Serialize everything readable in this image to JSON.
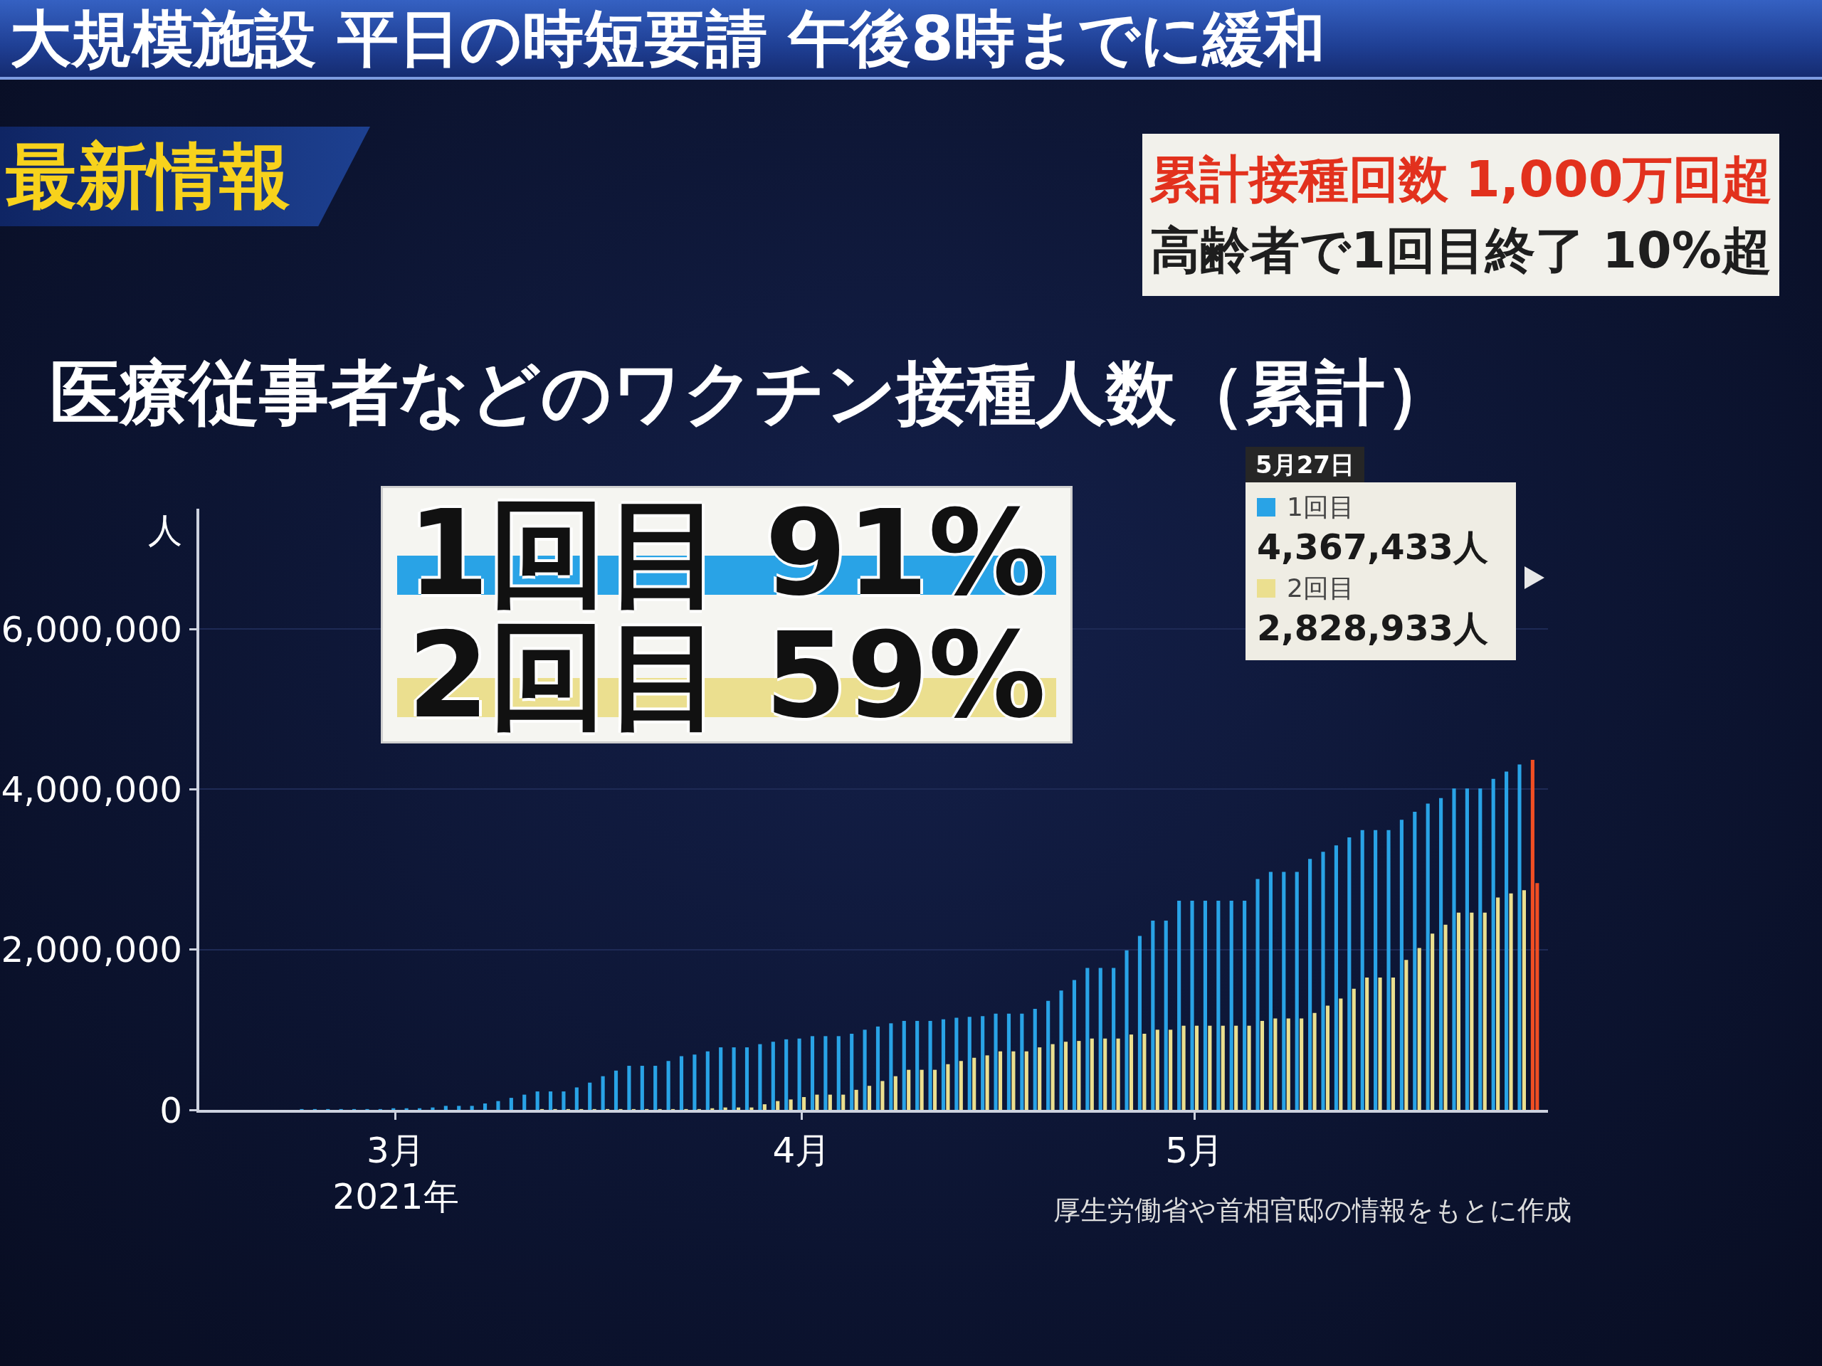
{
  "chart_data": {
    "type": "bar",
    "title": "医療従事者などのワクチン接種人数（累計）",
    "ylabel": "人",
    "legend_title": "5月27日",
    "annotations": [
      "大規模施設 平日の時短要請 午後8時までに緩和",
      "最新情報",
      "累計接種回数 1,000万回超",
      "高齢者で1回目終了 10%超",
      "1回目 91%",
      "2回目 59%",
      "4,367,433人",
      "2,828,933人",
      "厚生労働省や首相官邸の情報をもとに作成"
    ],
    "x": [
      "2021-02-22",
      "2021-02-23",
      "2021-02-24",
      "2021-02-25",
      "2021-02-26",
      "2021-02-27",
      "2021-02-28",
      "2021-03-01",
      "2021-03-02",
      "2021-03-03",
      "2021-03-04",
      "2021-03-05",
      "2021-03-06",
      "2021-03-07",
      "2021-03-08",
      "2021-03-09",
      "2021-03-10",
      "2021-03-11",
      "2021-03-12",
      "2021-03-13",
      "2021-03-14",
      "2021-03-15",
      "2021-03-16",
      "2021-03-17",
      "2021-03-18",
      "2021-03-19",
      "2021-03-20",
      "2021-03-21",
      "2021-03-22",
      "2021-03-23",
      "2021-03-24",
      "2021-03-25",
      "2021-03-26",
      "2021-03-27",
      "2021-03-28",
      "2021-03-29",
      "2021-03-30",
      "2021-03-31",
      "2021-04-01",
      "2021-04-02",
      "2021-04-03",
      "2021-04-04",
      "2021-04-05",
      "2021-04-06",
      "2021-04-07",
      "2021-04-08",
      "2021-04-09",
      "2021-04-10",
      "2021-04-11",
      "2021-04-12",
      "2021-04-13",
      "2021-04-14",
      "2021-04-15",
      "2021-04-16",
      "2021-04-17",
      "2021-04-18",
      "2021-04-19",
      "2021-04-20",
      "2021-04-21",
      "2021-04-22",
      "2021-04-23",
      "2021-04-24",
      "2021-04-25",
      "2021-04-26",
      "2021-04-27",
      "2021-04-28",
      "2021-04-29",
      "2021-04-30",
      "2021-05-01",
      "2021-05-02",
      "2021-05-03",
      "2021-05-04",
      "2021-05-05",
      "2021-05-06",
      "2021-05-07",
      "2021-05-08",
      "2021-05-09",
      "2021-05-10",
      "2021-05-11",
      "2021-05-12",
      "2021-05-13",
      "2021-05-14",
      "2021-05-15",
      "2021-05-16",
      "2021-05-17",
      "2021-05-18",
      "2021-05-19",
      "2021-05-20",
      "2021-05-21",
      "2021-05-22",
      "2021-05-23",
      "2021-05-24",
      "2021-05-25",
      "2021-05-26",
      "2021-05-27"
    ],
    "xlim": [
      "2021-02-14",
      "2021-05-28"
    ],
    "xticks": [
      {
        "value": "2021-03-01",
        "label": "3月\n2021年"
      },
      {
        "value": "2021-04-01",
        "label": "4月"
      },
      {
        "value": "2021-05-01",
        "label": "5月"
      }
    ],
    "ylim": [
      0,
      7500000
    ],
    "yticks": [
      0,
      {
        "value": 2000000,
        "label": "2,000,000"
      },
      {
        "value": 4000000,
        "label": "4,000,000"
      },
      {
        "value": 6000000,
        "label": "6,000,000"
      }
    ],
    "grid": "y",
    "legend": "top right",
    "series": [
      {
        "name": "1回目",
        "color": "#29a3e6",
        "values": [
          10000,
          10000,
          10000,
          10000,
          10000,
          10000,
          10000,
          20000,
          20000,
          20000,
          30000,
          50000,
          50000,
          50000,
          80000,
          110000,
          150000,
          190000,
          230000,
          230000,
          230000,
          280000,
          340000,
          420000,
          490000,
          550000,
          550000,
          550000,
          610000,
          670000,
          690000,
          730000,
          780000,
          780000,
          780000,
          820000,
          850000,
          880000,
          890000,
          920000,
          920000,
          920000,
          950000,
          1000000,
          1040000,
          1080000,
          1110000,
          1110000,
          1110000,
          1130000,
          1150000,
          1160000,
          1170000,
          1200000,
          1200000,
          1200000,
          1260000,
          1360000,
          1490000,
          1620000,
          1770000,
          1770000,
          1770000,
          1990000,
          2170000,
          2360000,
          2360000,
          2610000,
          2610000,
          2610000,
          2610000,
          2610000,
          2610000,
          2880000,
          2970000,
          2970000,
          2970000,
          3130000,
          3220000,
          3300000,
          3400000,
          3490000,
          3490000,
          3490000,
          3620000,
          3720000,
          3820000,
          3890000,
          4010000,
          4010000,
          4010000,
          4130000,
          4220000,
          4310000,
          4367433
        ],
        "colors": [
          "#29a3e6",
          "#29a3e6",
          "#29a3e6",
          "#29a3e6",
          "#29a3e6",
          "#29a3e6",
          "#29a3e6",
          "#29a3e6",
          "#29a3e6",
          "#29a3e6",
          "#29a3e6",
          "#29a3e6",
          "#29a3e6",
          "#29a3e6",
          "#29a3e6",
          "#29a3e6",
          "#29a3e6",
          "#29a3e6",
          "#29a3e6",
          "#29a3e6",
          "#29a3e6",
          "#29a3e6",
          "#29a3e6",
          "#29a3e6",
          "#29a3e6",
          "#29a3e6",
          "#29a3e6",
          "#29a3e6",
          "#29a3e6",
          "#29a3e6",
          "#29a3e6",
          "#29a3e6",
          "#29a3e6",
          "#29a3e6",
          "#29a3e6",
          "#29a3e6",
          "#29a3e6",
          "#29a3e6",
          "#29a3e6",
          "#29a3e6",
          "#29a3e6",
          "#29a3e6",
          "#29a3e6",
          "#29a3e6",
          "#29a3e6",
          "#29a3e6",
          "#29a3e6",
          "#29a3e6",
          "#29a3e6",
          "#29a3e6",
          "#29a3e6",
          "#29a3e6",
          "#29a3e6",
          "#29a3e6",
          "#29a3e6",
          "#29a3e6",
          "#29a3e6",
          "#29a3e6",
          "#29a3e6",
          "#29a3e6",
          "#29a3e6",
          "#29a3e6",
          "#29a3e6",
          "#29a3e6",
          "#29a3e6",
          "#29a3e6",
          "#29a3e6",
          "#29a3e6",
          "#29a3e6",
          "#29a3e6",
          "#29a3e6",
          "#29a3e6",
          "#29a3e6",
          "#29a3e6",
          "#29a3e6",
          "#29a3e6",
          "#29a3e6",
          "#29a3e6",
          "#29a3e6",
          "#29a3e6",
          "#29a3e6",
          "#29a3e6",
          "#29a3e6",
          "#29a3e6",
          "#29a3e6",
          "#29a3e6",
          "#29a3e6",
          "#29a3e6",
          "#29a3e6",
          "#29a3e6",
          "#29a3e6",
          "#29a3e6",
          "#29a3e6",
          "#29a3e6",
          "#f04e23"
        ]
      },
      {
        "name": "2回目",
        "color": "#ebdf8f",
        "values": [
          null,
          null,
          null,
          null,
          null,
          null,
          null,
          null,
          null,
          null,
          null,
          null,
          null,
          null,
          null,
          null,
          null,
          null,
          10000,
          10000,
          10000,
          10000,
          10000,
          10000,
          10000,
          10000,
          10000,
          10000,
          10000,
          10000,
          10000,
          20000,
          30000,
          30000,
          30000,
          70000,
          110000,
          130000,
          160000,
          190000,
          190000,
          190000,
          250000,
          300000,
          360000,
          420000,
          500000,
          500000,
          500000,
          570000,
          610000,
          650000,
          680000,
          730000,
          730000,
          730000,
          780000,
          820000,
          850000,
          860000,
          890000,
          890000,
          890000,
          940000,
          950000,
          1000000,
          1000000,
          1050000,
          1050000,
          1050000,
          1050000,
          1050000,
          1050000,
          1110000,
          1140000,
          1140000,
          1140000,
          1210000,
          1300000,
          1390000,
          1510000,
          1650000,
          1650000,
          1650000,
          1870000,
          2020000,
          2200000,
          2310000,
          2460000,
          2460000,
          2460000,
          2650000,
          2700000,
          2740000,
          2828933
        ],
        "colors": [
          "#ebdf8f",
          "#ebdf8f",
          "#ebdf8f",
          "#ebdf8f",
          "#ebdf8f",
          "#ebdf8f",
          "#ebdf8f",
          "#ebdf8f",
          "#ebdf8f",
          "#ebdf8f",
          "#ebdf8f",
          "#ebdf8f",
          "#ebdf8f",
          "#ebdf8f",
          "#ebdf8f",
          "#ebdf8f",
          "#ebdf8f",
          "#ebdf8f",
          "#ebdf8f",
          "#ebdf8f",
          "#ebdf8f",
          "#ebdf8f",
          "#ebdf8f",
          "#ebdf8f",
          "#ebdf8f",
          "#ebdf8f",
          "#ebdf8f",
          "#ebdf8f",
          "#ebdf8f",
          "#ebdf8f",
          "#ebdf8f",
          "#ebdf8f",
          "#ebdf8f",
          "#ebdf8f",
          "#ebdf8f",
          "#ebdf8f",
          "#ebdf8f",
          "#ebdf8f",
          "#ebdf8f",
          "#ebdf8f",
          "#ebdf8f",
          "#ebdf8f",
          "#ebdf8f",
          "#ebdf8f",
          "#ebdf8f",
          "#ebdf8f",
          "#ebdf8f",
          "#ebdf8f",
          "#ebdf8f",
          "#ebdf8f",
          "#ebdf8f",
          "#ebdf8f",
          "#ebdf8f",
          "#ebdf8f",
          "#ebdf8f",
          "#ebdf8f",
          "#ebdf8f",
          "#ebdf8f",
          "#ebdf8f",
          "#ebdf8f",
          "#ebdf8f",
          "#ebdf8f",
          "#ebdf8f",
          "#ebdf8f",
          "#ebdf8f",
          "#ebdf8f",
          "#ebdf8f",
          "#ebdf8f",
          "#ebdf8f",
          "#ebdf8f",
          "#ebdf8f",
          "#ebdf8f",
          "#ebdf8f",
          "#ebdf8f",
          "#ebdf8f",
          "#ebdf8f",
          "#ebdf8f",
          "#ebdf8f",
          "#ebdf8f",
          "#ebdf8f",
          "#ebdf8f",
          "#ebdf8f",
          "#ebdf8f",
          "#ebdf8f",
          "#ebdf8f",
          "#ebdf8f",
          "#ebdf8f",
          "#ebdf8f",
          "#ebdf8f",
          "#ebdf8f",
          "#ebdf8f",
          "#ebdf8f",
          "#ebdf8f",
          "#ebdf8f",
          "#f04e23"
        ]
      }
    ]
  }
}
